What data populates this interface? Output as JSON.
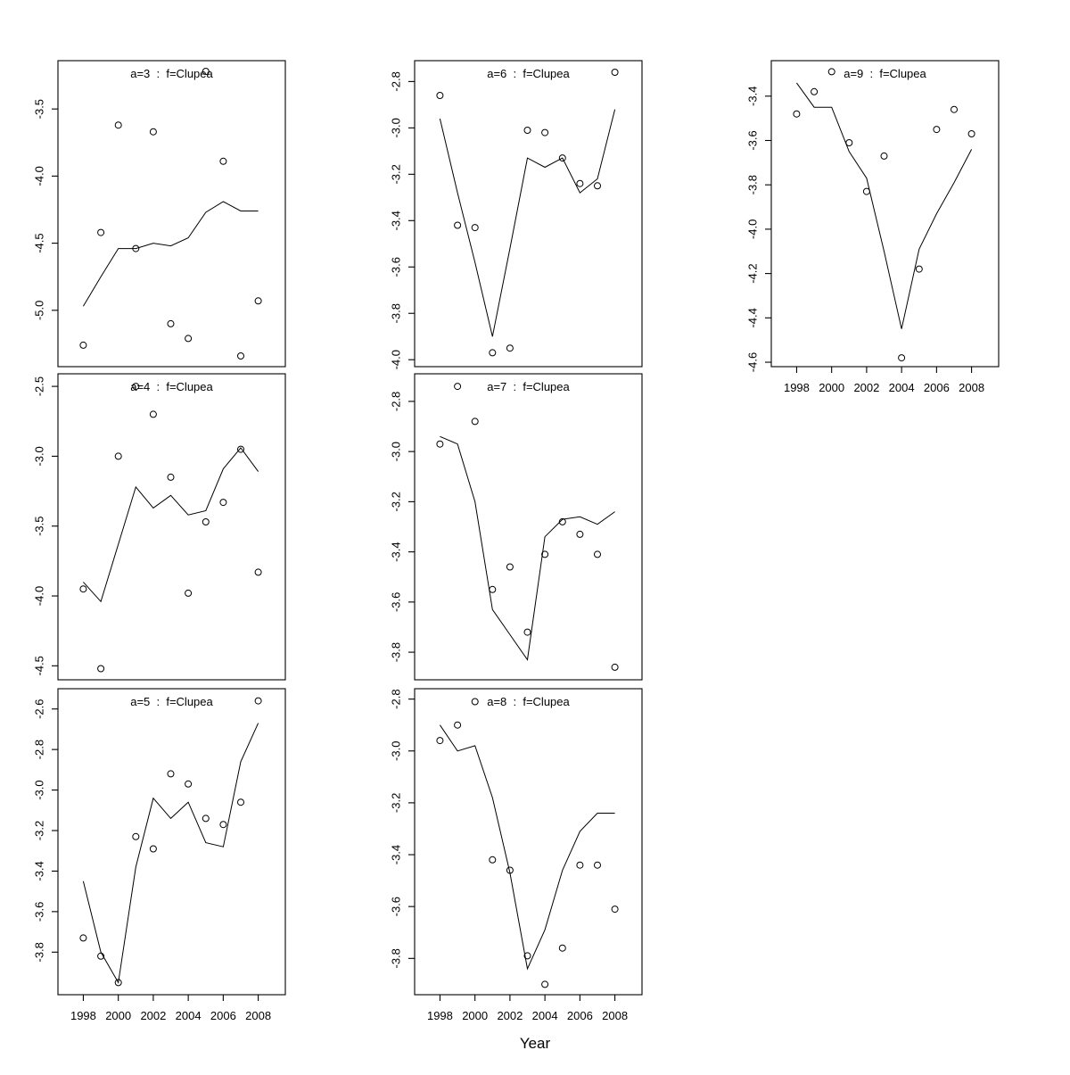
{
  "chart_data": {
    "type": "scatter",
    "xlabel": "Year",
    "x": [
      1998,
      1999,
      2000,
      2001,
      2002,
      2003,
      2004,
      2005,
      2006,
      2007,
      2008
    ],
    "x_ticks": [
      1998,
      2000,
      2002,
      2004,
      2006,
      2008
    ],
    "x_tick_labels": [
      "1998",
      "2000",
      "2002",
      "2004",
      "2006",
      "2008"
    ],
    "xlim": [
      1996.55,
      2009.55
    ],
    "grid": false,
    "title_color": "#8a8a8a",
    "axis_color": "#000000",
    "series_style": {
      "points": "open-circles",
      "line": "solid-black-fit-line"
    },
    "panels": [
      {
        "id": "a3",
        "title": "a=3  :  f=Clupea",
        "row": 0,
        "col": 0,
        "x_axis": false,
        "ylim": [
          -5.42,
          -3.14
        ],
        "yticks": [
          -3.5,
          -4.0,
          -4.5,
          -5.0
        ],
        "ytick_labels": [
          "-3.5",
          "-4.0",
          "-4.5",
          "-5.0"
        ],
        "points": [
          -5.26,
          -4.42,
          -3.62,
          -4.54,
          -3.67,
          -5.1,
          -5.21,
          -3.22,
          -3.89,
          -5.34,
          -4.93
        ],
        "line": [
          -4.97,
          -4.75,
          -4.54,
          -4.54,
          -4.5,
          -4.52,
          -4.46,
          -4.27,
          -4.19,
          -4.26,
          -4.26
        ]
      },
      {
        "id": "a4",
        "title": "a=4  :  f=Clupea",
        "row": 1,
        "col": 0,
        "x_axis": false,
        "ylim": [
          -4.6,
          -2.41
        ],
        "yticks": [
          -2.5,
          -3.0,
          -3.5,
          -4.0,
          -4.5
        ],
        "ytick_labels": [
          "-2.5",
          "-3.0",
          "-3.5",
          "-4.0",
          "-4.5"
        ],
        "points": [
          -3.95,
          -4.52,
          -3.0,
          -2.5,
          -2.7,
          -3.15,
          -3.98,
          -3.47,
          -3.33,
          -2.95,
          -3.83
        ],
        "line": [
          -3.9,
          -4.04,
          -3.63,
          -3.22,
          -3.37,
          -3.28,
          -3.42,
          -3.39,
          -3.09,
          -2.94,
          -3.11
        ]
      },
      {
        "id": "a5",
        "title": "a=5  :  f=Clupea",
        "row": 2,
        "col": 0,
        "x_axis": true,
        "ylim": [
          -4.01,
          -2.5
        ],
        "yticks": [
          -2.6,
          -2.8,
          -3.0,
          -3.2,
          -3.4,
          -3.6,
          -3.8
        ],
        "ytick_labels": [
          "-2.6",
          "-2.8",
          "-3.0",
          "-3.2",
          "-3.4",
          "-3.6",
          "-3.8"
        ],
        "points": [
          -3.73,
          -3.82,
          -3.95,
          -3.23,
          -3.29,
          -2.92,
          -2.97,
          -3.14,
          -3.17,
          -3.06,
          -2.56
        ],
        "line": [
          -3.45,
          -3.8,
          -3.95,
          -3.38,
          -3.04,
          -3.14,
          -3.06,
          -3.26,
          -3.28,
          -2.86,
          -2.67
        ]
      },
      {
        "id": "a6",
        "title": "a=6  :  f=Clupea",
        "row": 0,
        "col": 1,
        "x_axis": false,
        "ylim": [
          -4.03,
          -2.71
        ],
        "yticks": [
          -2.8,
          -3.0,
          -3.2,
          -3.4,
          -3.6,
          -3.8,
          -4.0
        ],
        "ytick_labels": [
          "-2.8",
          "-3.0",
          "-3.2",
          "-3.4",
          "-3.6",
          "-3.8",
          "-4.0"
        ],
        "points": [
          -2.86,
          -3.42,
          -3.43,
          -3.97,
          -3.95,
          -3.01,
          -3.02,
          -3.13,
          -3.24,
          -3.25,
          -2.76
        ],
        "line": [
          -2.96,
          -3.28,
          -3.58,
          -3.9,
          -3.52,
          -3.13,
          -3.17,
          -3.13,
          -3.28,
          -3.22,
          -2.92
        ]
      },
      {
        "id": "a7",
        "title": "a=7  :  f=Clupea",
        "row": 1,
        "col": 1,
        "x_axis": false,
        "ylim": [
          -3.91,
          -2.69
        ],
        "yticks": [
          -2.8,
          -3.0,
          -3.2,
          -3.4,
          -3.6,
          -3.8
        ],
        "ytick_labels": [
          "-2.8",
          "-3.0",
          "-3.2",
          "-3.4",
          "-3.6",
          "-3.8"
        ],
        "points": [
          -2.97,
          -2.74,
          -2.88,
          -3.55,
          -3.46,
          -3.72,
          -3.41,
          -3.28,
          -3.33,
          -3.41,
          -3.86
        ],
        "line": [
          -2.94,
          -2.97,
          -3.2,
          -3.63,
          -3.73,
          -3.83,
          -3.34,
          -3.27,
          -3.26,
          -3.29,
          -3.24
        ]
      },
      {
        "id": "a8",
        "title": "a=8  :  f=Clupea",
        "row": 2,
        "col": 1,
        "x_axis": true,
        "ylim": [
          -3.94,
          -2.76
        ],
        "yticks": [
          -2.8,
          -3.0,
          -3.2,
          -3.4,
          -3.6,
          -3.8
        ],
        "ytick_labels": [
          "-2.8",
          "-3.0",
          "-3.2",
          "-3.4",
          "-3.6",
          "-3.8"
        ],
        "points": [
          -2.96,
          -2.9,
          -2.81,
          -3.42,
          -3.46,
          -3.79,
          -3.9,
          -3.76,
          -3.44,
          -3.44,
          -3.61
        ],
        "line": [
          -2.9,
          -3.0,
          -2.98,
          -3.18,
          -3.47,
          -3.84,
          -3.69,
          -3.46,
          -3.31,
          -3.24,
          -3.24
        ]
      },
      {
        "id": "a9",
        "title": "a=9  :  f=Clupea",
        "row": 0,
        "col": 2,
        "x_axis": true,
        "ylim": [
          -4.62,
          -3.24
        ],
        "yticks": [
          -3.4,
          -3.6,
          -3.8,
          -4.0,
          -4.2,
          -4.4,
          -4.6
        ],
        "ytick_labels": [
          "-3.4",
          "-3.6",
          "-3.8",
          "-4.0",
          "-4.2",
          "-4.4",
          "-4.6"
        ],
        "points": [
          -3.48,
          -3.38,
          -3.29,
          -3.61,
          -3.83,
          -3.67,
          -4.58,
          -4.18,
          -3.55,
          -3.46,
          -3.57
        ],
        "line": [
          -3.34,
          -3.45,
          -3.45,
          -3.65,
          -3.77,
          -4.1,
          -4.45,
          -4.09,
          -3.93,
          -3.79,
          -3.64
        ]
      }
    ]
  }
}
